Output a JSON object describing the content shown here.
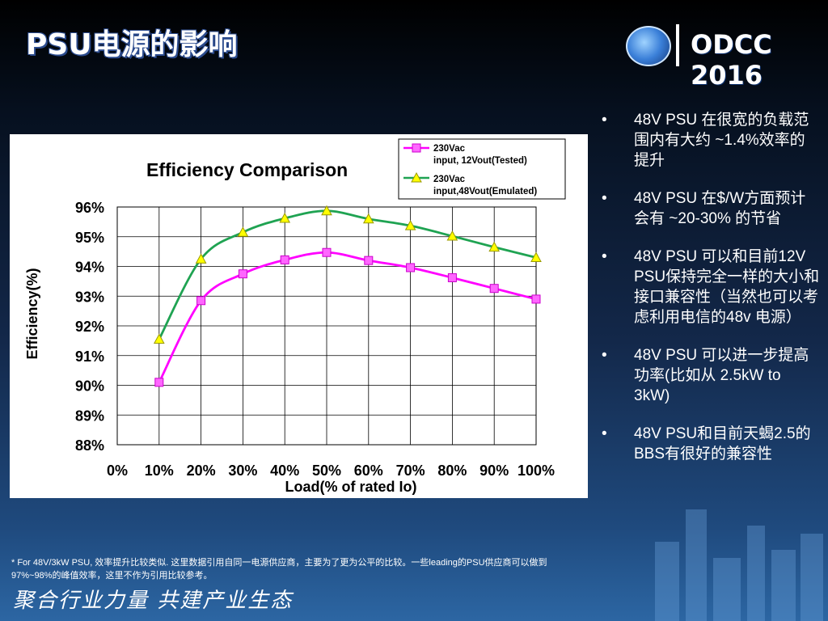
{
  "slide": {
    "title": "PSU电源的影响",
    "logo_text": "ODCC 2016",
    "footnote": "* For 48V/3kW PSU, 效率提升比较类似. 这里数据引用自同一电源供应商，主要为了更为公平的比较。一些leading的PSU供应商可以做到97%~98%的峰值效率，这里不作为引用比较参考。",
    "slogan": "聚合行业力量  共建产业生态",
    "bullet_symbol": "•",
    "bullets": [
      "48V PSU 在很宽的负载范围内有大约 ~1.4%效率的提升",
      "48V PSU 在$/W方面预计会有 ~20-30% 的节省",
      "48V PSU 可以和目前12V PSU保持完全一样的大小和接口兼容性（当然也可以考虑利用电信的48v 电源）",
      "48V PSU 可以进一步提高功率(比如从 2.5kW to 3kW)",
      "48V PSU和目前天蝎2.5的BBS有很好的兼容性"
    ]
  },
  "colors": {
    "series1": "#ff00ff",
    "series2": "#1fa352",
    "marker2": "#ffff00"
  },
  "chart_data": {
    "type": "line",
    "title": "Efficiency Comparison",
    "xlabel": "Load(% of rated Io)",
    "ylabel": "Efficiency(%)",
    "categories": [
      "10%",
      "20%",
      "30%",
      "40%",
      "50%",
      "60%",
      "70%",
      "80%",
      "90%",
      "100%"
    ],
    "x_tick_labels": [
      "0%",
      "10%",
      "20%",
      "30%",
      "40%",
      "50%",
      "60%",
      "70%",
      "80%",
      "90%",
      "100%"
    ],
    "y_tick_labels": [
      "96%",
      "95%",
      "94%",
      "93%",
      "92%",
      "91%",
      "90%",
      "89%",
      "88%"
    ],
    "x": [
      10,
      20,
      30,
      40,
      50,
      60,
      70,
      80,
      90,
      100
    ],
    "xlim": [
      0,
      100
    ],
    "ylim": [
      88,
      96
    ],
    "grid": true,
    "legend_position": "top-right",
    "series": [
      {
        "name_line1": "230Vac",
        "name_line2": "input, 12Vout(Tested)",
        "values": [
          90.1,
          92.85,
          93.75,
          94.22,
          94.47,
          94.2,
          93.96,
          93.62,
          93.26,
          92.9
        ]
      },
      {
        "name_line1": "230Vac",
        "name_line2": "input,48Vout(Emulated)",
        "values": [
          91.55,
          94.25,
          95.15,
          95.62,
          95.87,
          95.6,
          95.37,
          95.02,
          94.65,
          94.3
        ]
      }
    ]
  }
}
